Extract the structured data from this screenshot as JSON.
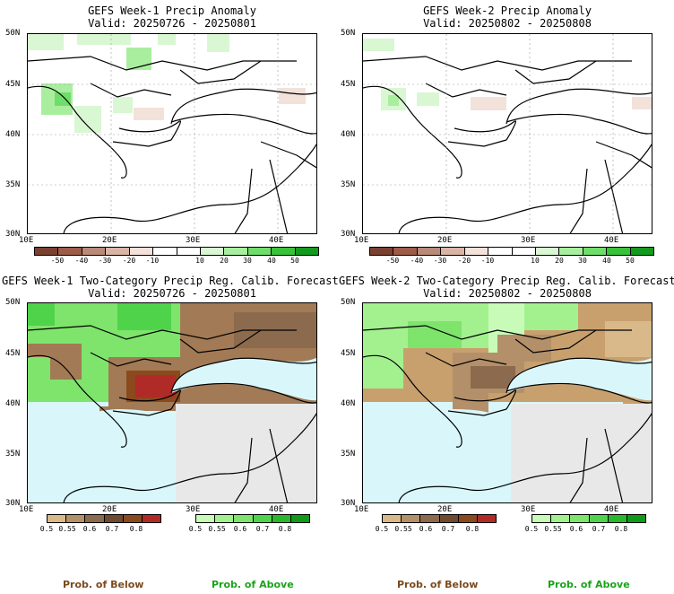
{
  "panels": [
    {
      "title": "GEFS Week-1 Precip Anomaly",
      "valid": "Valid: 20250726 - 20250801"
    },
    {
      "title": "GEFS Week-2 Precip Anomaly",
      "valid": "Valid: 20250802 - 20250808"
    },
    {
      "title": "GEFS Week-1 Two-Category Precip Reg. Calib. Forecast",
      "valid": "Valid: 20250726 - 20250801"
    },
    {
      "title": "GEFS Week-2 Two-Category Precip Reg. Calib. Forecast",
      "valid": "Valid: 20250802 - 20250808"
    }
  ],
  "axes": {
    "lat_labels": [
      "50N",
      "45N",
      "40N",
      "35N",
      "30N"
    ],
    "lon_labels": [
      "10E",
      "20E",
      "30E",
      "40E"
    ]
  },
  "anomaly_scale": {
    "ticks": [
      "-50",
      "-40",
      "-30",
      "-20",
      "-10",
      "10",
      "20",
      "30",
      "40",
      "50"
    ],
    "colors": [
      "#7a4030",
      "#9c5c48",
      "#b98a78",
      "#d9b5a6",
      "#f3e2da",
      "#ffffff",
      "#ffffff",
      "#d9f7d2",
      "#a9ee9f",
      "#6fdd69",
      "#38c23a",
      "#119a1d"
    ]
  },
  "prob_below_scale": {
    "ticks": [
      "0.5",
      "0.55",
      "0.6",
      "0.7",
      "0.8"
    ],
    "colors": [
      "#d9b98a",
      "#b3906a",
      "#8c6a4e",
      "#6e4a30",
      "#8a4a1e",
      "#b02a28"
    ]
  },
  "prob_above_scale": {
    "ticks": [
      "0.5",
      "0.55",
      "0.6",
      "0.7",
      "0.8"
    ],
    "colors": [
      "#c8fbb8",
      "#a3f08f",
      "#7ee46c",
      "#4fd34a",
      "#2ab82b",
      "#0f9a18"
    ]
  },
  "legend": {
    "below": "Prob. of Below",
    "above": "Prob. of Above",
    "below_color": "#7a4a1e",
    "above_color": "#1aa31a"
  },
  "colors": {
    "sea": "#d9f7fb",
    "no_forecast_gray": "#e8e8e8",
    "dry_brown": "#a27a55",
    "wet_green": "#7ee46c"
  }
}
